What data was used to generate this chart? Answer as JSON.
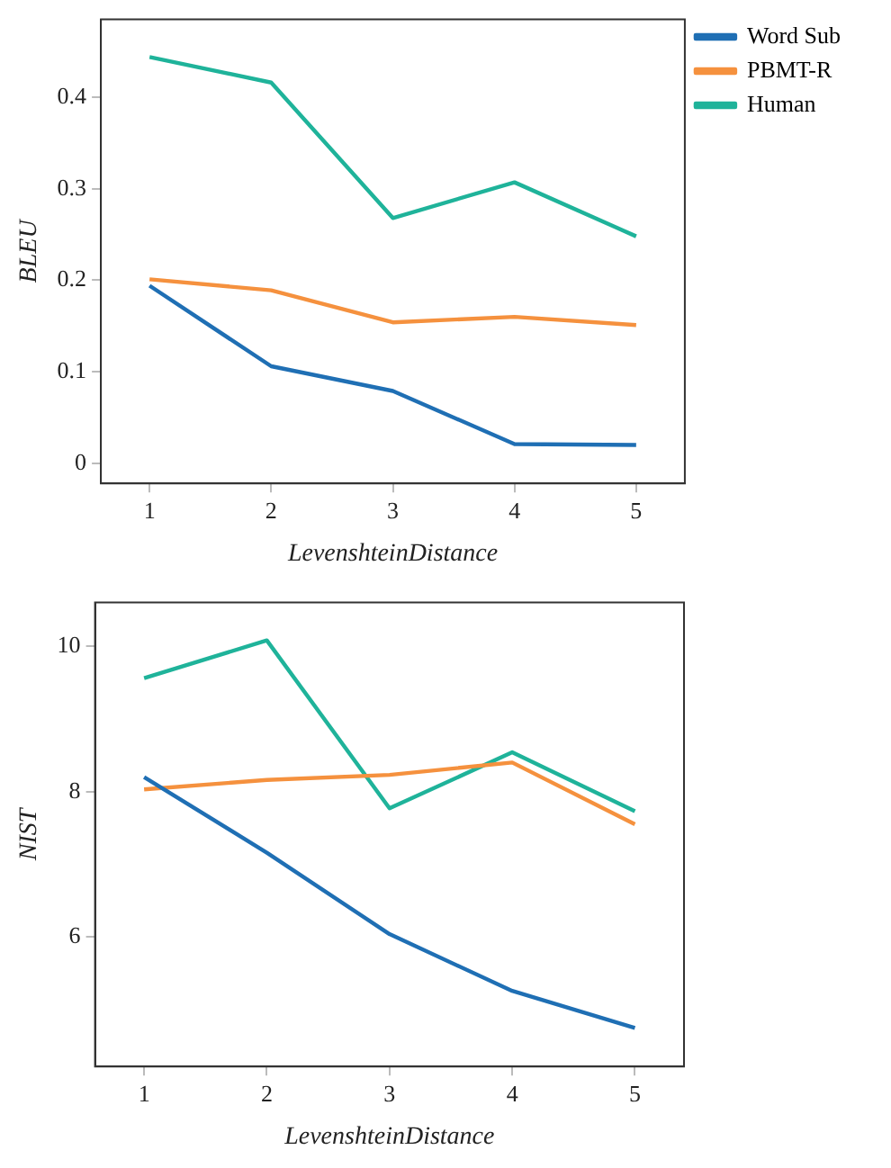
{
  "chart_data": [
    {
      "type": "line",
      "xlabel": "LevenshteinDistance",
      "ylabel": "BLEU",
      "x": [
        1,
        2,
        3,
        4,
        5
      ],
      "xlim": [
        0.6,
        5.4
      ],
      "xticks": [
        1,
        2,
        3,
        4,
        5
      ],
      "ylim": [
        -0.022,
        0.485
      ],
      "yticks": [
        0,
        0.1,
        0.2,
        0.3,
        0.4
      ],
      "grid": false,
      "legend": "top right",
      "marker": "none",
      "line_style": "solid",
      "series": [
        {
          "name": "Word Sub",
          "color": "#1f6fb4",
          "values": [
            0.194,
            0.106,
            0.079,
            0.021,
            0.02
          ]
        },
        {
          "name": "PBMT-R",
          "color": "#f5913e",
          "values": [
            0.201,
            0.189,
            0.154,
            0.16,
            0.151
          ]
        },
        {
          "name": "Human",
          "color": "#1fb39a",
          "values": [
            0.444,
            0.416,
            0.268,
            0.307,
            0.248
          ]
        }
      ]
    },
    {
      "type": "line",
      "xlabel": "LevenshteinDistance",
      "ylabel": "NIST",
      "x": [
        1,
        2,
        3,
        4,
        5
      ],
      "xlim": [
        0.6,
        5.4
      ],
      "xticks": [
        1,
        2,
        3,
        4,
        5
      ],
      "ylim": [
        4.22,
        10.6
      ],
      "yticks": [
        6,
        8,
        10
      ],
      "grid": false,
      "legend": false,
      "marker": "none",
      "line_style": "solid",
      "series": [
        {
          "color": "#1f6fb4",
          "values": [
            8.2,
            7.16,
            6.04,
            5.26,
            4.75
          ]
        },
        {
          "color": "#f5913e",
          "values": [
            8.03,
            8.16,
            8.23,
            8.4,
            7.55
          ]
        },
        {
          "color": "#1fb39a",
          "values": [
            9.56,
            10.08,
            7.77,
            8.54,
            7.73
          ]
        }
      ]
    }
  ]
}
